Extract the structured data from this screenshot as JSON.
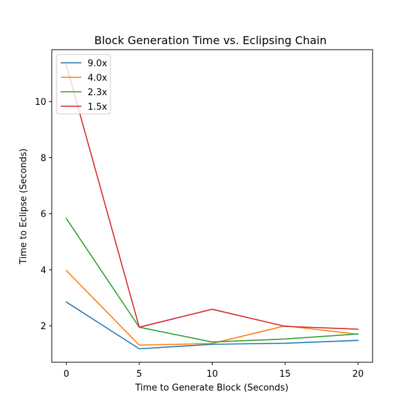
{
  "chart_data": {
    "type": "line",
    "title": "Block Generation Time vs. Eclipsing Chain",
    "xlabel": "Time to Generate Block (Seconds)",
    "ylabel": "Time to Eclipse (Seconds)",
    "x": [
      0,
      5,
      10,
      15,
      20
    ],
    "xticks": [
      0,
      5,
      10,
      15,
      20
    ],
    "yticks": [
      2,
      4,
      6,
      8,
      10
    ],
    "xlim": [
      -1.0,
      21.0
    ],
    "ylim": [
      0.7,
      11.85
    ],
    "grid": false,
    "legend_position": "top-left",
    "series": [
      {
        "name": "9.0x",
        "color": "#1f77b4",
        "values": [
          2.85,
          1.18,
          1.34,
          1.38,
          1.48
        ]
      },
      {
        "name": "4.0x",
        "color": "#ff7f0e",
        "values": [
          3.97,
          1.31,
          1.37,
          2.0,
          1.7
        ]
      },
      {
        "name": "2.3x",
        "color": "#2ca02c",
        "values": [
          5.83,
          1.95,
          1.42,
          1.53,
          1.71
        ]
      },
      {
        "name": "1.5x",
        "color": "#d62728",
        "values": [
          11.3,
          1.95,
          2.59,
          1.98,
          1.88
        ]
      }
    ]
  }
}
